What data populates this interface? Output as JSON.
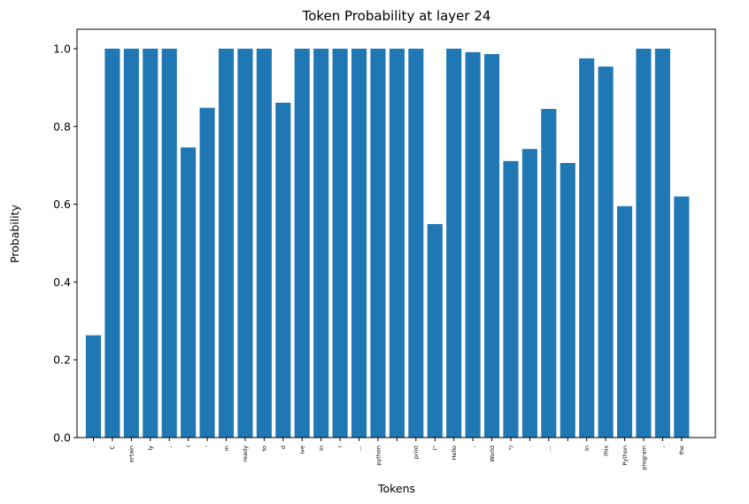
{
  "chart_data": {
    "type": "bar",
    "title": "Token Probability at layer 24",
    "xlabel": "Tokens",
    "ylabel": "Probability",
    "ylim": [
      0,
      1.05
    ],
    "yticks": [
      "0.0",
      "0.2",
      "0.4",
      "0.6",
      "0.8",
      "1.0"
    ],
    "categories": [
      ".",
      "C",
      "ertain",
      "ly",
      ",",
      "I",
      "'",
      "m",
      "ready",
      "to",
      "d",
      "ive",
      "in",
      "!",
      "...",
      "python",
      "",
      "print",
      "(\"",
      "Hello",
      ",",
      "World",
      "\")",
      "",
      "...",
      "",
      "In",
      "this",
      "Python",
      "program",
      ",",
      "the"
    ],
    "values": [
      0.263,
      1.0,
      1.0,
      1.0,
      1.0,
      0.746,
      0.848,
      1.0,
      1.0,
      1.0,
      0.861,
      1.0,
      1.0,
      1.0,
      1.0,
      1.0,
      1.0,
      1.0,
      0.549,
      1.0,
      0.991,
      0.986,
      0.711,
      0.742,
      0.845,
      0.706,
      0.975,
      0.954,
      0.595,
      1.0,
      1.0,
      0.62
    ],
    "bar_color": "#1f77b4"
  }
}
